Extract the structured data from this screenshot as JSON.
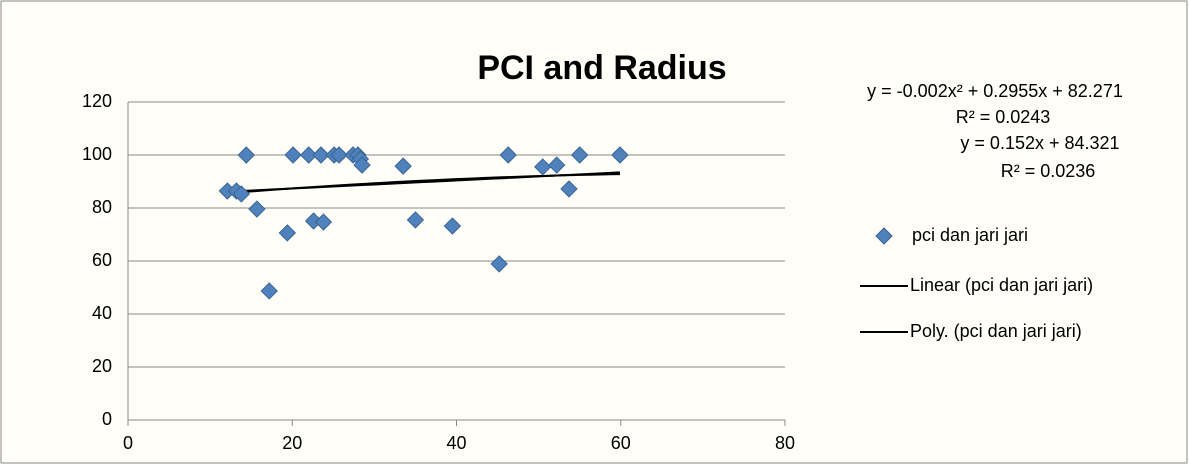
{
  "chart_data": {
    "type": "scatter",
    "title": "PCI and Radius",
    "series": [
      {
        "name": "pci dan jari jari",
        "color": "#4f81bd",
        "x": [
          12.1,
          13.2,
          13.8,
          14.4,
          15.7,
          17.2,
          19.4,
          20.1,
          22,
          22.6,
          23.5,
          23.8,
          25.1,
          25.7,
          27.4,
          28,
          28.3,
          28.5,
          33.5,
          35,
          39.5,
          45.2,
          46.3,
          50.5,
          52.2,
          53.7,
          55,
          59.9
        ],
        "values": [
          86.4,
          86.4,
          85.3,
          100,
          79.6,
          48.7,
          70.6,
          100,
          100,
          75.1,
          100,
          74.7,
          100,
          100,
          100,
          100,
          98.5,
          96.2,
          95.8,
          75.5,
          73.2,
          58.9,
          100,
          95.5,
          96.2,
          87.2,
          100,
          100
        ]
      }
    ],
    "trendlines": [
      {
        "name": "Linear (pci dan jari jari)",
        "color": "#000000",
        "equation": "y = 0.152x + 84.321",
        "r2": "R² = 0.0236",
        "coefficients": [
          84.321,
          0.152
        ]
      },
      {
        "name": "Poly. (pci dan jari jari)",
        "color": "#000000",
        "equation": "y = -0.002x² + 0.2955x + 82.271",
        "r2": "R² = 0.0243",
        "coefficients": [
          82.271,
          0.2955,
          -0.002
        ]
      }
    ],
    "xlim": [
      0,
      80
    ],
    "xticks": [
      0,
      20,
      40,
      60,
      80
    ],
    "ylim": [
      0,
      120
    ],
    "yticks": [
      0,
      20,
      40,
      60,
      80,
      100,
      120
    ],
    "grid": true,
    "legend": "right"
  }
}
